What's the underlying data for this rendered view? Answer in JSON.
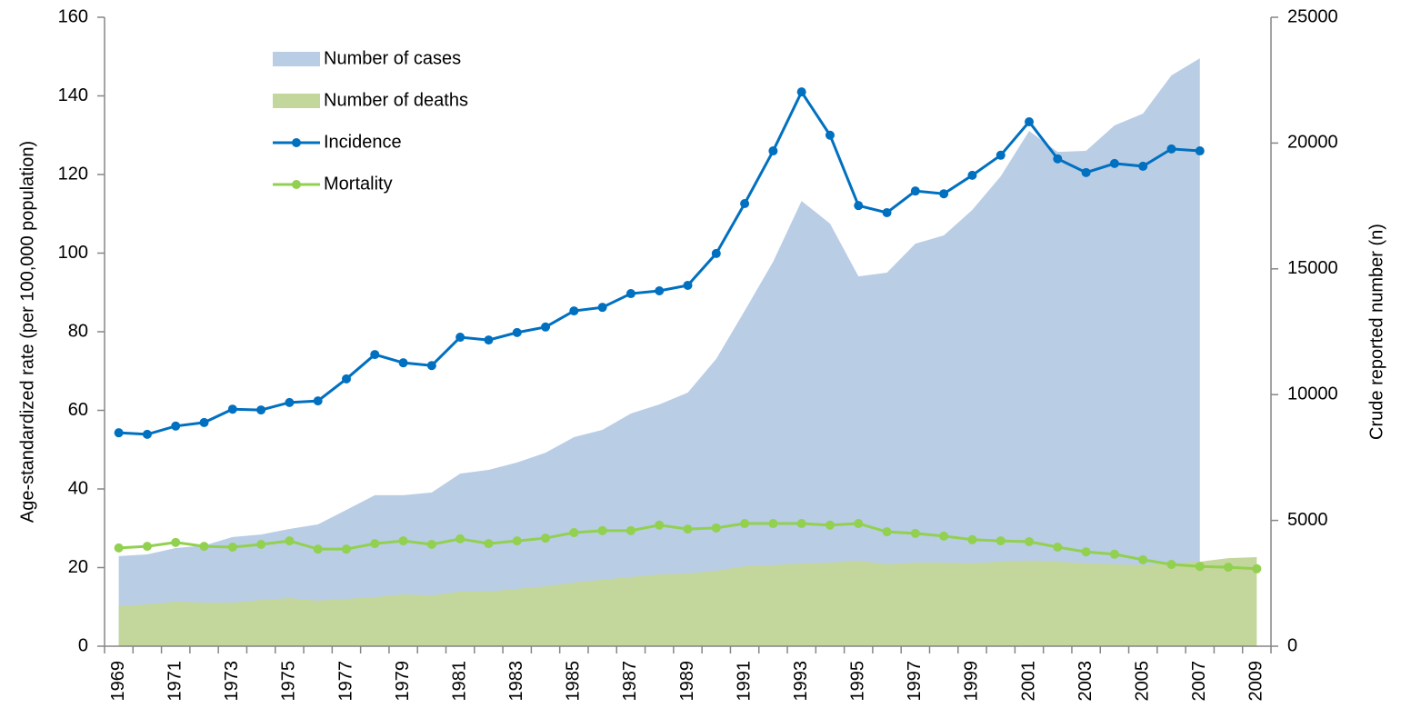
{
  "chart_data": {
    "type": "line",
    "y_label": "Age-standardized rate (per 100,000 population)",
    "y2_label": "Crude reported number (n)",
    "categories": [
      "1969",
      null,
      "1971",
      null,
      "1973",
      null,
      "1975",
      null,
      "1977",
      null,
      "1979",
      null,
      "1981",
      null,
      "1983",
      null,
      "1985",
      null,
      "1987",
      null,
      "1989",
      null,
      "1991",
      null,
      "1993",
      null,
      "1995",
      null,
      "1997",
      null,
      "1999",
      null,
      "2001",
      null,
      "2003",
      null,
      "2005",
      null,
      "2007",
      null,
      "2009"
    ],
    "ylim": [
      0,
      160
    ],
    "yticks": [
      0,
      20,
      40,
      60,
      80,
      100,
      120,
      140,
      160
    ],
    "y2lim": [
      0,
      25000
    ],
    "y2ticks": [
      0,
      5000,
      10000,
      15000,
      20000,
      25000
    ],
    "legend": "upper-left",
    "series": [
      {
        "name": "Number of cases",
        "type": "area",
        "axis": "y2",
        "color": "#b9cde5",
        "values": [
          3580,
          3650,
          3900,
          4000,
          4340,
          4440,
          4660,
          4840,
          5420,
          6000,
          6000,
          6110,
          6860,
          7010,
          7300,
          7690,
          8310,
          8600,
          9250,
          9610,
          10080,
          11420,
          13330,
          15280,
          17700,
          16800,
          14700,
          14850,
          16000,
          16330,
          17340,
          18680,
          20480,
          19650,
          19690,
          20700,
          21170,
          22690,
          23370,
          null,
          null
        ]
      },
      {
        "name": "Number of deaths",
        "type": "area",
        "axis": "y2",
        "color": "#c3d69b",
        "values": [
          1590,
          1660,
          1770,
          1730,
          1730,
          1840,
          1910,
          1810,
          1880,
          1950,
          2060,
          2020,
          2170,
          2170,
          2280,
          2380,
          2530,
          2640,
          2750,
          2850,
          2890,
          3000,
          3180,
          3220,
          3290,
          3320,
          3400,
          3250,
          3320,
          3320,
          3290,
          3360,
          3400,
          3360,
          3290,
          3250,
          3220,
          3290,
          3360,
          3500,
          3540
        ]
      },
      {
        "name": "Incidence",
        "type": "line",
        "color": "#0070c0",
        "values": [
          54.3,
          53.9,
          56,
          56.9,
          60.3,
          60.1,
          62,
          62.4,
          68,
          74.2,
          72.1,
          71.4,
          78.6,
          77.9,
          79.8,
          81.2,
          85.3,
          86.2,
          89.7,
          90.4,
          91.8,
          99.9,
          112.6,
          126,
          141,
          130,
          112.1,
          110.3,
          115.8,
          115.1,
          119.8,
          124.9,
          133.4,
          124,
          120.5,
          122.8,
          122.1,
          126.5,
          126,
          null,
          null
        ]
      },
      {
        "name": "Mortality",
        "type": "line",
        "color": "#92d050",
        "values": [
          25,
          25.4,
          26.4,
          25.4,
          25.2,
          25.9,
          26.8,
          24.7,
          24.7,
          26.1,
          26.8,
          25.9,
          27.3,
          26.1,
          26.8,
          27.5,
          28.9,
          29.4,
          29.4,
          30.8,
          29.8,
          30.1,
          31.2,
          31.2,
          31.2,
          30.8,
          31.2,
          29.1,
          28.7,
          28,
          27.1,
          26.8,
          26.6,
          25.2,
          24,
          23.4,
          22,
          20.8,
          20.3,
          20.1,
          19.7
        ]
      }
    ]
  }
}
